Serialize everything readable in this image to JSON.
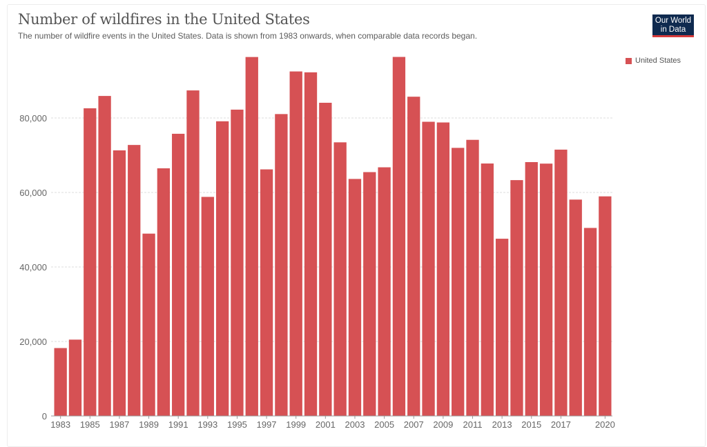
{
  "header": {
    "title": "Number of wildfires in the United States",
    "subtitle": "The number of wildfire events in the United States. Data is shown from 1983 onwards, when comparable data records began.",
    "logo_line1": "Our World",
    "logo_line2": "in Data"
  },
  "colors": {
    "bar": "#d65154",
    "logo_bg": "#0f2a4f",
    "logo_accent": "#d63a3a"
  },
  "chart_data": {
    "type": "bar",
    "title": "Number of wildfires in the United States",
    "subtitle": "The number of wildfire events in the United States. Data is shown from 1983 onwards, when comparable data records began.",
    "xlabel": "",
    "ylabel": "",
    "ylim": [
      0,
      97000
    ],
    "grid": true,
    "legend": {
      "position": "top-right",
      "entries": [
        "United States"
      ]
    },
    "y_ticks": [
      0,
      20000,
      40000,
      60000,
      80000
    ],
    "y_tick_labels": [
      "0",
      "20,000",
      "40,000",
      "60,000",
      "80,000"
    ],
    "x_tick_labels": [
      "1983",
      "1985",
      "1987",
      "1989",
      "1991",
      "1993",
      "1995",
      "1997",
      "1999",
      "2001",
      "2003",
      "2005",
      "2007",
      "2009",
      "2011",
      "2013",
      "2015",
      "2017",
      "2020"
    ],
    "categories": [
      "1983",
      "1984",
      "1985",
      "1986",
      "1987",
      "1988",
      "1989",
      "1990",
      "1991",
      "1992",
      "1993",
      "1994",
      "1995",
      "1996",
      "1997",
      "1998",
      "1999",
      "2000",
      "2001",
      "2002",
      "2003",
      "2004",
      "2005",
      "2006",
      "2007",
      "2008",
      "2009",
      "2010",
      "2011",
      "2012",
      "2013",
      "2014",
      "2015",
      "2016",
      "2017",
      "2018",
      "2019",
      "2020"
    ],
    "series": [
      {
        "name": "United States",
        "values": [
          18229,
          20493,
          82591,
          85907,
          71300,
          72750,
          48949,
          66481,
          75754,
          87394,
          58810,
          79107,
          82234,
          96363,
          66196,
          81043,
          92487,
          92250,
          84079,
          73457,
          63629,
          65461,
          66753,
          96385,
          85705,
          78979,
          78792,
          71971,
          74126,
          67774,
          47579,
          63312,
          68151,
          67743,
          71499,
          58083,
          50477,
          58950
        ]
      }
    ]
  }
}
